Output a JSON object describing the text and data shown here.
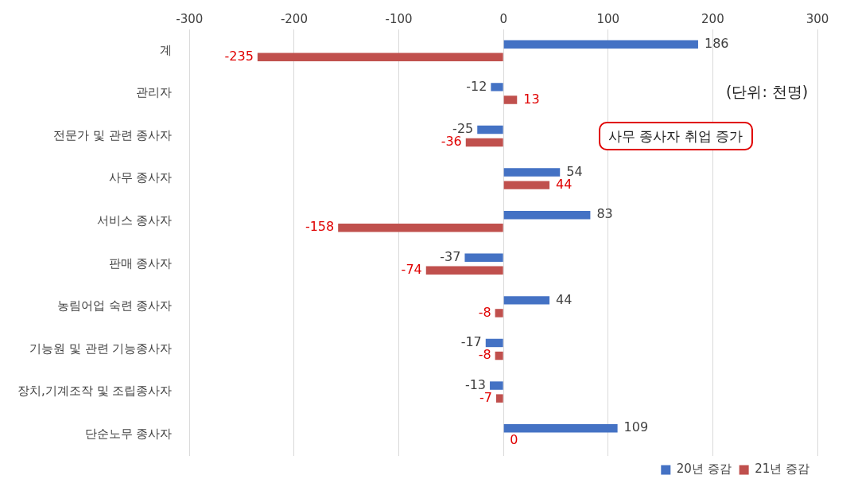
{
  "chart_data": {
    "type": "bar",
    "orientation": "horizontal",
    "categories": [
      "계",
      "관리자",
      "전문가 및 관련 종사자",
      "사무 종사자",
      "서비스 종사자",
      "판매 종사자",
      "농림어업 숙련 종사자",
      "기능원 및 관련 기능종사자",
      "장치,기계조작 및 조립종사자",
      "단순노무 종사자"
    ],
    "series": [
      {
        "name": "20년 증감",
        "color": "#4472c4",
        "values": [
          186,
          -12,
          -25,
          54,
          83,
          -37,
          44,
          -17,
          -13,
          109
        ]
      },
      {
        "name": "21년 증감",
        "color": "#c0504d",
        "values": [
          -235,
          13,
          -36,
          44,
          -158,
          -74,
          -8,
          -8,
          -7,
          0
        ]
      }
    ],
    "xlim": [
      -300,
      300
    ],
    "xticks": [
      -300,
      -200,
      -100,
      0,
      100,
      200,
      300
    ],
    "grid": "x",
    "legend": "bottom right",
    "data_labels": true,
    "annotations": [
      "(단위: 천명)",
      "사무 종사자 취업 증가"
    ]
  }
}
